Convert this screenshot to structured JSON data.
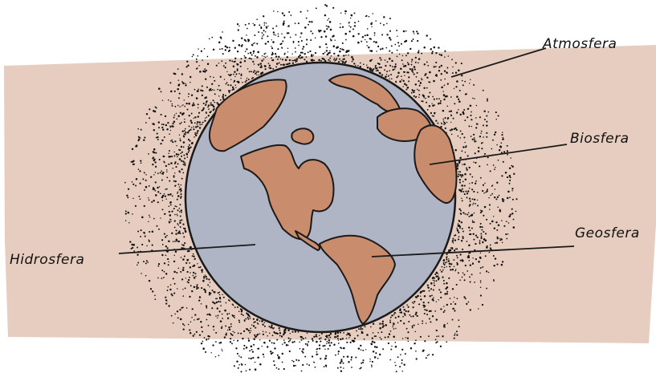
{
  "colors": {
    "band": "#e6cdbf",
    "ocean": "#b0b5c5",
    "land": "#c98c6c",
    "outline": "#1a1a1a",
    "dots": "#111111"
  },
  "labels": {
    "atmosfera": "Atmosfera",
    "biosfera": "Biosfera",
    "geosfera": "Geosfera",
    "hidrosfera": "Hidrosfera"
  }
}
